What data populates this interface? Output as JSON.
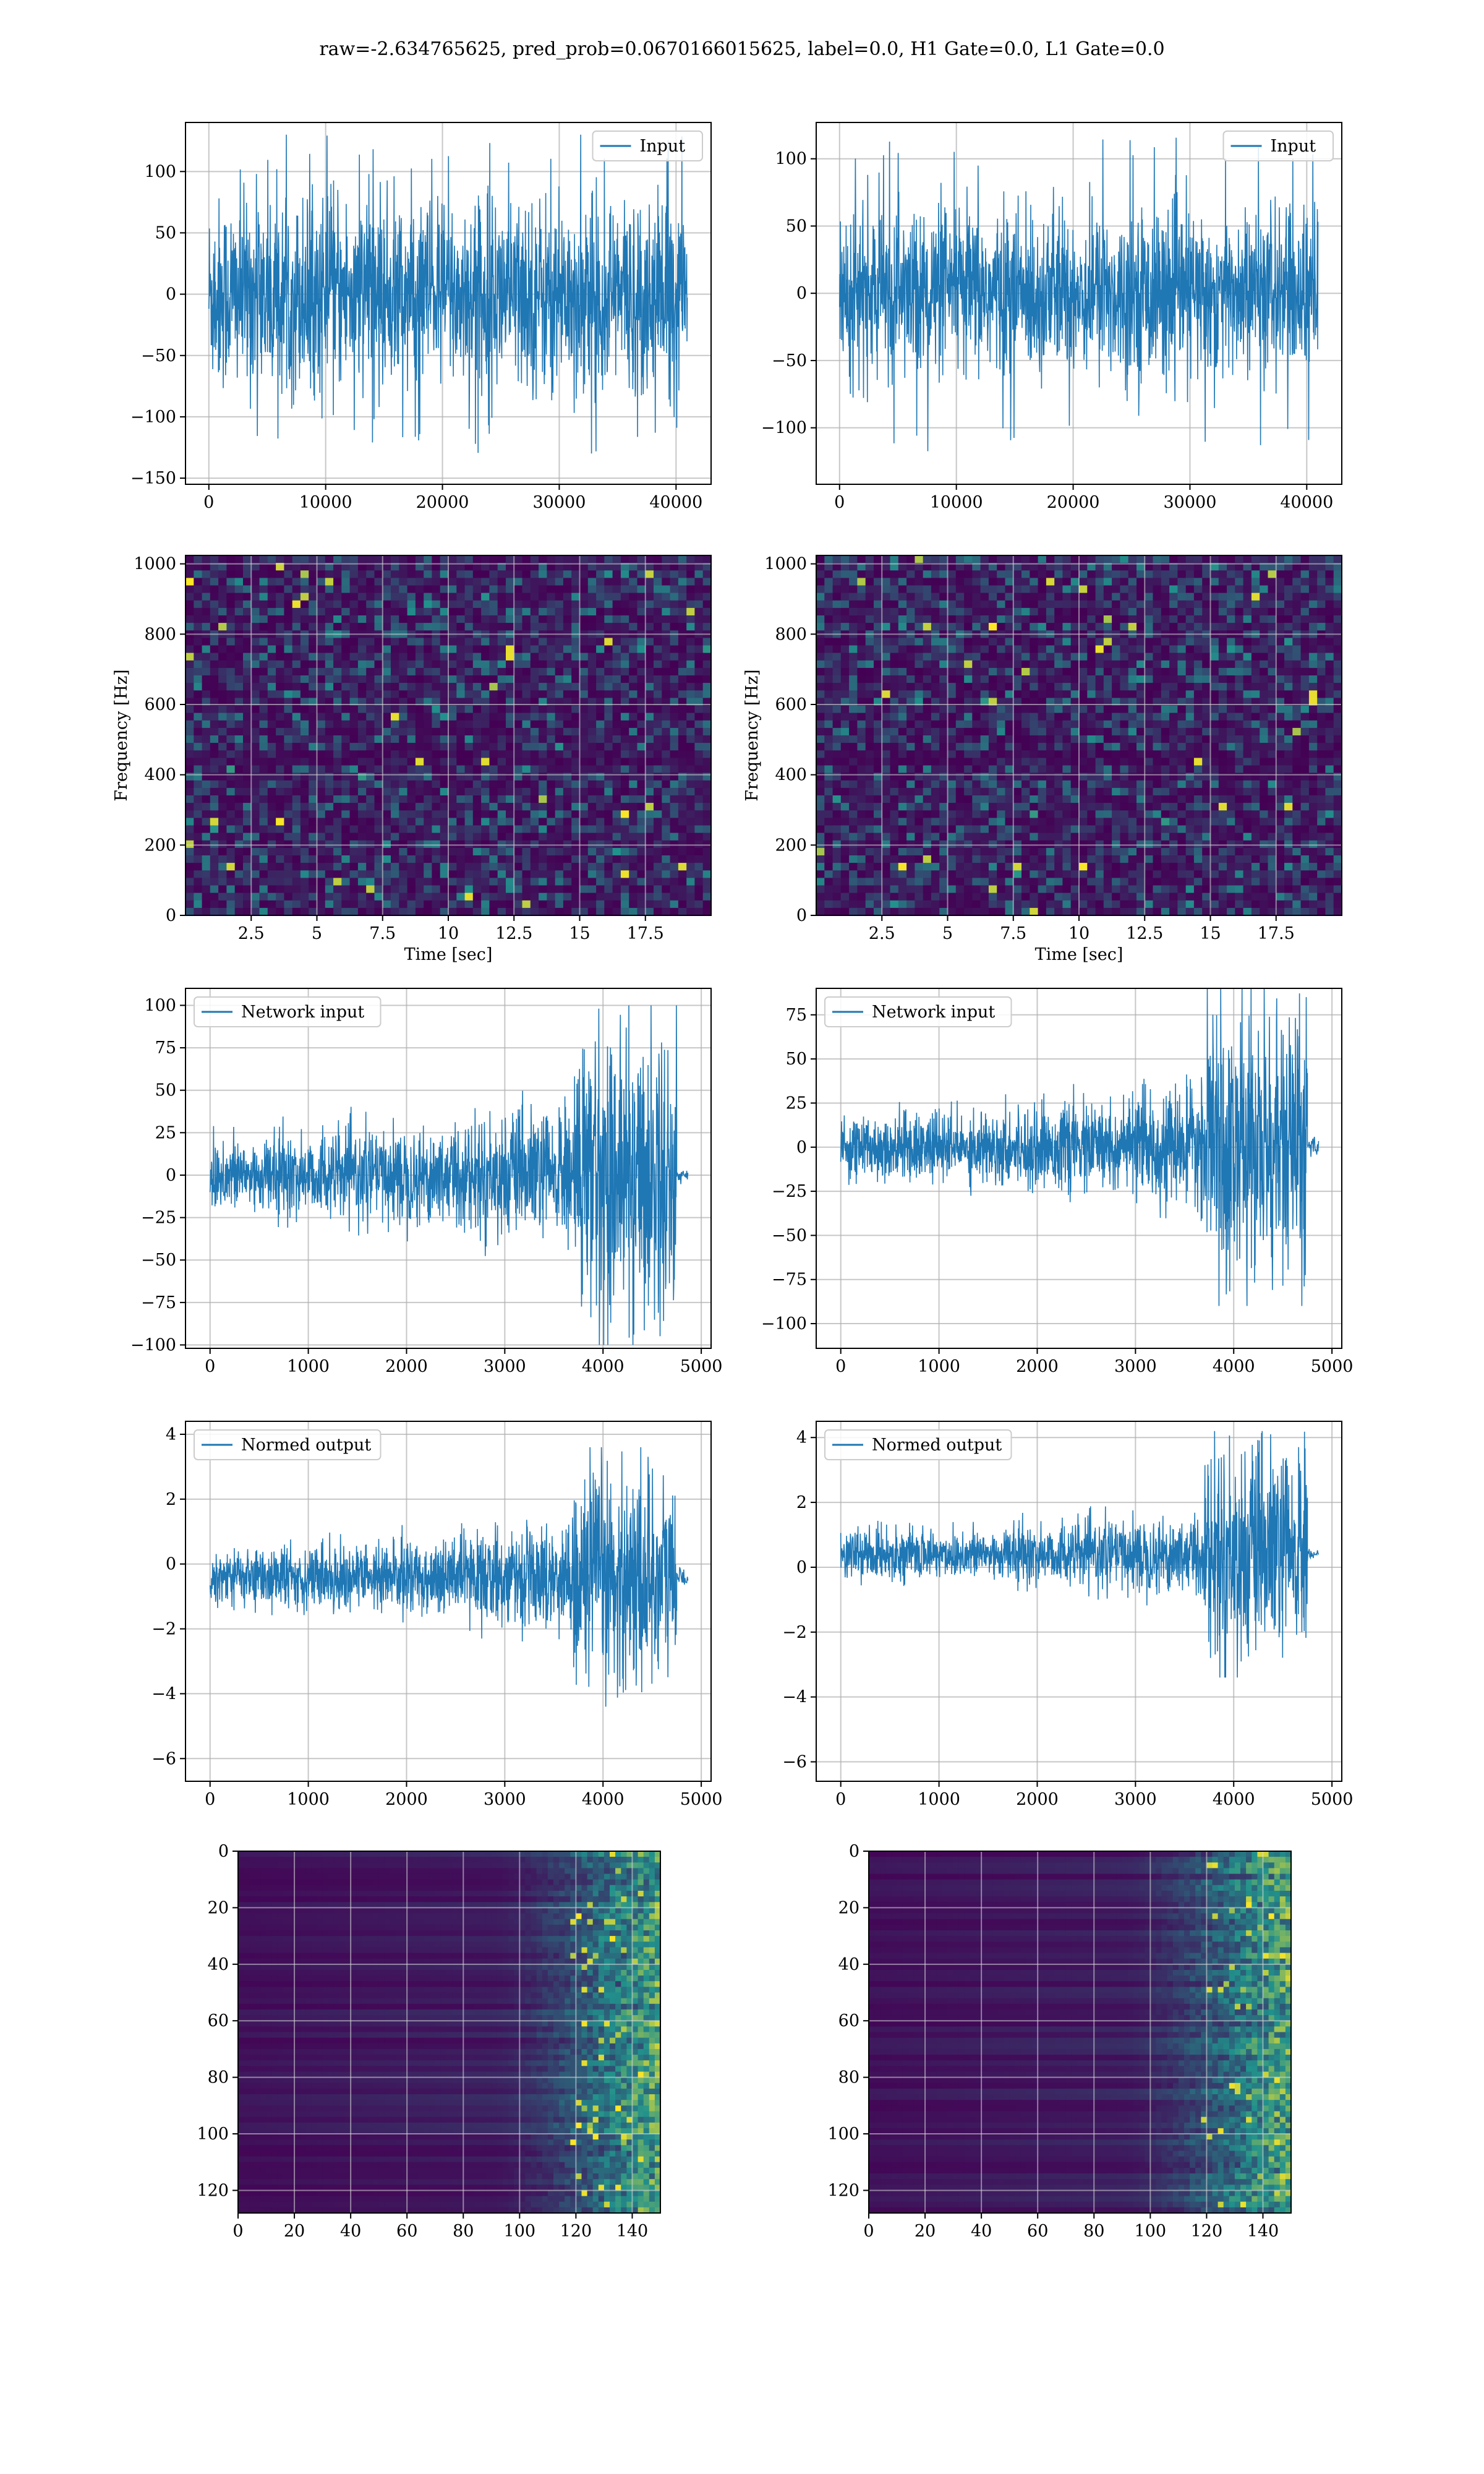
{
  "suptitle": "raw=-2.634765625, pred_prob=0.0670166015625, label=0.0, H1 Gate=0.0, L1 Gate=0.0",
  "colors": {
    "line": "#1f77b4",
    "grid": "#b0b0b0",
    "viridis_dark": "#440154",
    "viridis_mid": "#21918c",
    "viridis_bright": "#fde725"
  },
  "chart_data": [
    {
      "id": "input_h1",
      "type": "line",
      "legend": "Input",
      "series": [
        {
          "name": "Input",
          "x_range": [
            0,
            40960
          ],
          "amplitude_bulk": 70,
          "amplitude_peak": 130,
          "envelope": "stationary"
        }
      ],
      "xlim": [
        -2000,
        43000
      ],
      "ylim": [
        -155,
        140
      ],
      "xticks": [
        0,
        10000,
        20000,
        30000,
        40000
      ],
      "yticks": [
        -150,
        -100,
        -50,
        0,
        50,
        100
      ]
    },
    {
      "id": "input_l1",
      "type": "line",
      "legend": "Input",
      "series": [
        {
          "name": "Input",
          "x_range": [
            0,
            40960
          ],
          "amplitude_bulk": 55,
          "amplitude_peak": 120,
          "envelope": "stationary"
        }
      ],
      "xlim": [
        -2000,
        43000
      ],
      "ylim": [
        -142,
        127
      ],
      "xticks": [
        0,
        10000,
        20000,
        30000,
        40000
      ],
      "yticks": [
        -100,
        -50,
        0,
        50,
        100
      ]
    },
    {
      "id": "spec_h1",
      "type": "heatmap",
      "colormap": "viridis",
      "xlim": [
        0,
        20
      ],
      "ylim": [
        0,
        1024
      ],
      "xlabel": "Time [sec]",
      "ylabel": "Frequency [Hz]",
      "xticks": [
        2.5,
        5.0,
        7.5,
        10.0,
        12.5,
        15.0,
        17.5
      ],
      "yticks": [
        0,
        200,
        400,
        600,
        800,
        1000
      ]
    },
    {
      "id": "spec_l1",
      "type": "heatmap",
      "colormap": "viridis",
      "xlim": [
        0,
        20
      ],
      "ylim": [
        0,
        1024
      ],
      "xlabel": "Time [sec]",
      "ylabel": "Frequency [Hz]",
      "xticks": [
        2.5,
        5.0,
        7.5,
        10.0,
        12.5,
        15.0,
        17.5
      ],
      "yticks": [
        0,
        200,
        400,
        600,
        800,
        1000
      ]
    },
    {
      "id": "net_h1",
      "type": "line",
      "legend": "Network input",
      "series": [
        {
          "name": "Network input",
          "x_range": [
            0,
            4750
          ],
          "amplitude_early": 25,
          "amplitude_late": 100,
          "burst_start": 3700,
          "offset": 0
        }
      ],
      "xlim": [
        -250,
        5100
      ],
      "ylim": [
        -102,
        110
      ],
      "xticks": [
        0,
        1000,
        2000,
        3000,
        4000,
        5000
      ],
      "yticks": [
        -100,
        -75,
        -50,
        -25,
        0,
        25,
        50,
        75,
        100
      ]
    },
    {
      "id": "net_l1",
      "type": "line",
      "legend": "Network input",
      "series": [
        {
          "name": "Network input",
          "x_range": [
            0,
            4750
          ],
          "amplitude_early": 20,
          "amplitude_late": 90,
          "burst_start": 3700,
          "offset": 0
        }
      ],
      "xlim": [
        -250,
        5100
      ],
      "ylim": [
        -114,
        90
      ],
      "xticks": [
        0,
        1000,
        2000,
        3000,
        4000,
        5000
      ],
      "yticks": [
        -100,
        -75,
        -50,
        -25,
        0,
        25,
        50,
        75
      ]
    },
    {
      "id": "norm_h1",
      "type": "line",
      "legend": "Normed output",
      "series": [
        {
          "name": "Normed output",
          "x_range": [
            0,
            4750
          ],
          "amplitude_early": 1.0,
          "amplitude_late": 4.0,
          "burst_start": 3700,
          "offset": -0.4
        }
      ],
      "xlim": [
        -250,
        5100
      ],
      "ylim": [
        -6.7,
        4.4
      ],
      "xticks": [
        0,
        1000,
        2000,
        3000,
        4000,
        5000
      ],
      "yticks": [
        -6,
        -4,
        -2,
        0,
        2,
        4
      ]
    },
    {
      "id": "norm_l1",
      "type": "line",
      "legend": "Normed output",
      "series": [
        {
          "name": "Normed output",
          "x_range": [
            0,
            4750
          ],
          "amplitude_early": 0.8,
          "amplitude_late": 3.8,
          "burst_start": 3700,
          "offset": 0.4
        }
      ],
      "xlim": [
        -250,
        5100
      ],
      "ylim": [
        -6.6,
        4.5
      ],
      "xticks": [
        0,
        1000,
        2000,
        3000,
        4000,
        5000
      ],
      "yticks": [
        -6,
        -4,
        -2,
        0,
        2,
        4
      ]
    },
    {
      "id": "feat_h1",
      "type": "heatmap",
      "colormap": "viridis",
      "xlim": [
        0,
        150
      ],
      "ylim": [
        128,
        0
      ],
      "xticks": [
        0,
        20,
        40,
        60,
        80,
        100,
        120,
        140
      ],
      "yticks": [
        0,
        20,
        40,
        60,
        80,
        100,
        120
      ]
    },
    {
      "id": "feat_l1",
      "type": "heatmap",
      "colormap": "viridis",
      "xlim": [
        0,
        150
      ],
      "ylim": [
        128,
        0
      ],
      "xticks": [
        0,
        20,
        40,
        60,
        80,
        100,
        120,
        140
      ],
      "yticks": [
        0,
        20,
        40,
        60,
        80,
        100,
        120
      ]
    }
  ]
}
